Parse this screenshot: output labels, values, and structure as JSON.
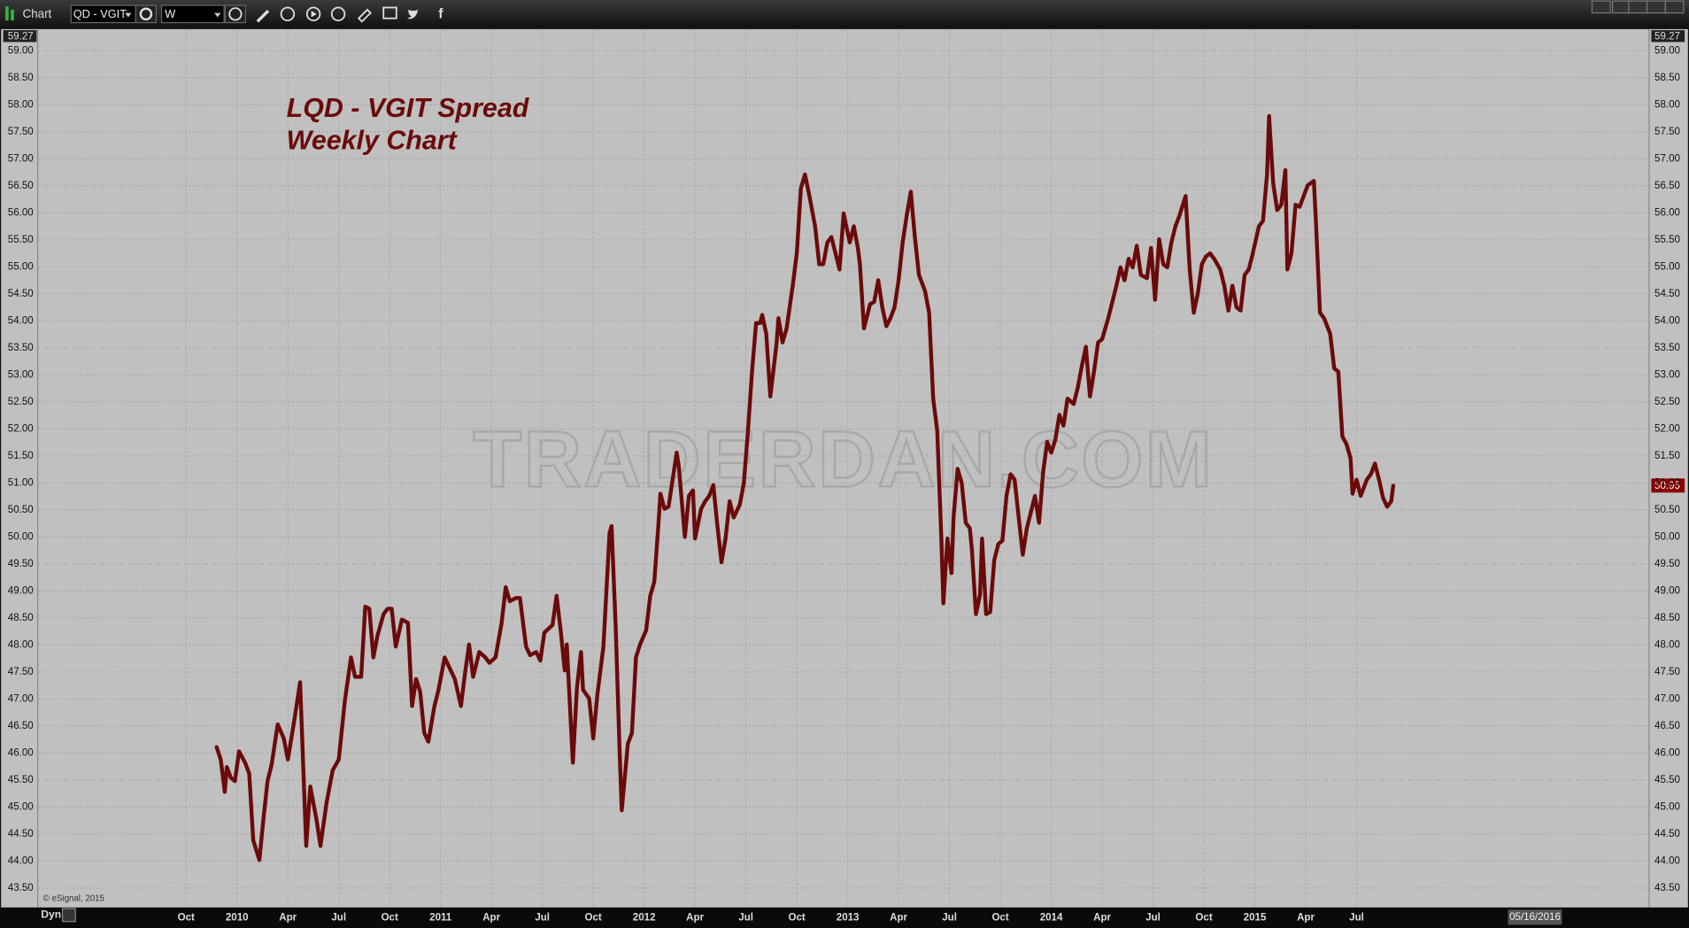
{
  "toolbar": {
    "title": "Chart",
    "symbol": "QD - VGIT",
    "interval": "W"
  },
  "footer": {
    "mode": "Dyn",
    "copyright": "© eSignal, 2015"
  },
  "chart_data": {
    "type": "line",
    "title": "LQD - VGIT Spread",
    "subtitle": "Weekly Chart",
    "watermark": "TRADERDAN.COM",
    "axis_top_label": "59.27",
    "last_value_label": "50.95",
    "cursor_date_label": "05/16/2016",
    "color": "#6b0a0a",
    "grid": true,
    "xlim": [
      2009.021,
      2016.937
    ],
    "ylim": [
      43.14,
      59.4
    ],
    "xticks": [
      {
        "value": 2009.75,
        "label": "Oct"
      },
      2010,
      {
        "value": 2010.25,
        "label": "Apr"
      },
      {
        "value": 2010.5,
        "label": "Jul"
      },
      {
        "value": 2010.75,
        "label": "Oct"
      },
      2011,
      {
        "value": 2011.25,
        "label": "Apr"
      },
      {
        "value": 2011.5,
        "label": "Jul"
      },
      {
        "value": 2011.75,
        "label": "Oct"
      },
      2012,
      {
        "value": 2012.25,
        "label": "Apr"
      },
      {
        "value": 2012.5,
        "label": "Jul"
      },
      {
        "value": 2012.75,
        "label": "Oct"
      },
      2013,
      {
        "value": 2013.25,
        "label": "Apr"
      },
      {
        "value": 2013.5,
        "label": "Jul"
      },
      {
        "value": 2013.75,
        "label": "Oct"
      },
      2014,
      {
        "value": 2014.25,
        "label": "Apr"
      },
      {
        "value": 2014.5,
        "label": "Jul"
      },
      {
        "value": 2014.75,
        "label": "Oct"
      },
      2015,
      {
        "value": 2015.25,
        "label": "Apr"
      },
      {
        "value": 2015.5,
        "label": "Jul"
      }
    ],
    "yticks": [
      {
        "value": 43.5,
        "label": "43.50"
      },
      {
        "value": 44,
        "label": "44.00"
      },
      {
        "value": 44.5,
        "label": "44.50"
      },
      {
        "value": 45,
        "label": "45.00"
      },
      {
        "value": 45.5,
        "label": "45.50"
      },
      {
        "value": 46,
        "label": "46.00"
      },
      {
        "value": 46.5,
        "label": "46.50"
      },
      {
        "value": 47,
        "label": "47.00"
      },
      {
        "value": 47.5,
        "label": "47.50"
      },
      {
        "value": 48,
        "label": "48.00"
      },
      {
        "value": 48.5,
        "label": "48.50"
      },
      {
        "value": 49,
        "label": "49.00"
      },
      {
        "value": 49.5,
        "label": "49.50"
      },
      {
        "value": 50,
        "label": "50.00"
      },
      {
        "value": 50.5,
        "label": "50.50"
      },
      {
        "value": 51,
        "label": "51.00"
      },
      {
        "value": 51.5,
        "label": "51.50"
      },
      {
        "value": 52,
        "label": "52.00"
      },
      {
        "value": 52.5,
        "label": "52.50"
      },
      {
        "value": 53,
        "label": "53.00"
      },
      {
        "value": 53.5,
        "label": "53.50"
      },
      {
        "value": 54,
        "label": "54.00"
      },
      {
        "value": 54.5,
        "label": "54.50"
      },
      {
        "value": 55,
        "label": "55.00"
      },
      {
        "value": 55.5,
        "label": "55.50"
      },
      {
        "value": 56,
        "label": "56.00"
      },
      {
        "value": 56.5,
        "label": "56.50"
      },
      {
        "value": 57,
        "label": "57.00"
      },
      {
        "value": 57.5,
        "label": "57.50"
      },
      {
        "value": 58,
        "label": "58.00"
      },
      {
        "value": 58.5,
        "label": "58.50"
      },
      {
        "value": 59,
        "label": "59.00"
      }
    ],
    "x": [
      2009.9,
      2009.92,
      2009.94,
      2009.95,
      2009.97,
      2009.99,
      2010.01,
      2010.04,
      2010.06,
      2010.08,
      2010.11,
      2010.13,
      2010.15,
      2010.17,
      2010.2,
      2010.23,
      2010.25,
      2010.28,
      2010.31,
      2010.34,
      2010.36,
      2010.39,
      2010.41,
      2010.44,
      2010.47,
      2010.5,
      2010.53,
      2010.56,
      2010.58,
      2010.61,
      2010.63,
      2010.65,
      2010.67,
      2010.69,
      2010.72,
      2010.74,
      2010.76,
      2010.78,
      2010.81,
      2010.84,
      2010.86,
      2010.88,
      2010.9,
      2010.92,
      2010.94,
      2010.97,
      2010.99,
      2011.02,
      2011.05,
      2011.07,
      2011.1,
      2011.12,
      2011.14,
      2011.16,
      2011.19,
      2011.22,
      2011.24,
      2011.27,
      2011.3,
      2011.32,
      2011.34,
      2011.37,
      2011.39,
      2011.42,
      2011.44,
      2011.47,
      2011.49,
      2011.51,
      2011.55,
      2011.57,
      2011.59,
      2011.61,
      2011.62,
      2011.65,
      2011.67,
      2011.69,
      2011.7,
      2011.73,
      2011.75,
      2011.77,
      2011.8,
      2011.83,
      2011.84,
      2011.86,
      2011.88,
      2011.89,
      2011.92,
      2011.94,
      2011.96,
      2011.98,
      2012.01,
      2012.03,
      2012.05,
      2012.07,
      2012.08,
      2012.1,
      2012.12,
      2012.14,
      2012.16,
      2012.17,
      2012.2,
      2012.22,
      2012.24,
      2012.25,
      2012.28,
      2012.3,
      2012.32,
      2012.34,
      2012.36,
      2012.38,
      2012.4,
      2012.42,
      2012.44,
      2012.47,
      2012.49,
      2012.51,
      2012.53,
      2012.55,
      2012.57,
      2012.58,
      2012.6,
      2012.62,
      2012.65,
      2012.66,
      2012.68,
      2012.7,
      2012.73,
      2012.75,
      2012.77,
      2012.79,
      2012.81,
      2012.84,
      2012.86,
      2012.88,
      2012.9,
      2012.92,
      2012.94,
      2012.96,
      2012.98,
      2013.01,
      2013.03,
      2013.05,
      2013.06,
      2013.08,
      2013.11,
      2013.13,
      2013.15,
      2013.17,
      2013.19,
      2013.21,
      2013.23,
      2013.25,
      2013.27,
      2013.29,
      2013.31,
      2013.33,
      2013.35,
      2013.38,
      2013.4,
      2013.42,
      2013.44,
      2013.46,
      2013.47,
      2013.49,
      2013.51,
      2013.52,
      2013.54,
      2013.56,
      2013.58,
      2013.6,
      2013.61,
      2013.63,
      2013.65,
      2013.66,
      2013.68,
      2013.7,
      2013.72,
      2013.74,
      2013.76,
      2013.78,
      2013.8,
      2013.82,
      2013.84,
      2013.86,
      2013.88,
      2013.9,
      2013.92,
      2013.94,
      2013.96,
      2013.98,
      2014.0,
      2014.02,
      2014.04,
      2014.06,
      2014.08,
      2014.11,
      2014.13,
      2014.15,
      2014.17,
      2014.19,
      2014.21,
      2014.23,
      2014.25,
      2014.28,
      2014.3,
      2014.32,
      2014.34,
      2014.36,
      2014.38,
      2014.4,
      2014.42,
      2014.44,
      2014.47,
      2014.49,
      2014.51,
      2014.53,
      2014.55,
      2014.57,
      2014.59,
      2014.61,
      2014.63,
      2014.66,
      2014.68,
      2014.7,
      2014.72,
      2014.74,
      2014.76,
      2014.78,
      2014.8,
      2014.83,
      2014.85,
      2014.87,
      2014.89,
      2014.91,
      2014.93,
      2014.95,
      2014.97,
      2014.99,
      2015.02,
      2015.04,
      2015.06,
      2015.07,
      2015.09,
      2015.11,
      2015.13,
      2015.15,
      2015.16,
      2015.18,
      2015.2,
      2015.22,
      2015.24,
      2015.26,
      2015.29,
      2015.3,
      2015.32,
      2015.34,
      2015.37,
      2015.39,
      2015.41,
      2015.43,
      2015.45,
      2015.47,
      2015.48,
      2015.5,
      2015.52,
      2015.55,
      2015.57,
      2015.59,
      2015.61,
      2015.63,
      2015.65,
      2015.67,
      2015.68
    ],
    "values": [
      46.11,
      45.88,
      45.28,
      45.74,
      45.54,
      45.48,
      46.03,
      45.82,
      45.62,
      44.38,
      44.02,
      44.78,
      45.48,
      45.78,
      46.53,
      46.27,
      45.88,
      46.57,
      47.31,
      44.28,
      45.38,
      44.78,
      44.28,
      45.08,
      45.68,
      45.88,
      46.97,
      47.77,
      47.41,
      47.41,
      48.71,
      48.67,
      47.77,
      48.17,
      48.57,
      48.67,
      48.67,
      47.97,
      48.47,
      48.41,
      46.87,
      47.37,
      47.13,
      46.37,
      46.21,
      46.87,
      47.17,
      47.77,
      47.53,
      47.37,
      46.87,
      47.47,
      48.01,
      47.41,
      47.87,
      47.77,
      47.67,
      47.77,
      48.41,
      49.07,
      48.81,
      48.87,
      48.87,
      47.97,
      47.81,
      47.87,
      47.71,
      48.23,
      48.37,
      48.91,
      48.27,
      47.53,
      48.01,
      45.82,
      47.21,
      47.87,
      47.17,
      47.01,
      46.27,
      47.07,
      47.97,
      50.07,
      50.2,
      48.37,
      45.98,
      44.94,
      46.17,
      46.37,
      47.77,
      48.01,
      48.27,
      48.91,
      49.17,
      50.22,
      50.8,
      50.52,
      50.56,
      51.06,
      51.56,
      51.32,
      50.0,
      50.76,
      50.86,
      49.97,
      50.52,
      50.66,
      50.76,
      50.96,
      50.2,
      49.53,
      49.97,
      50.66,
      50.36,
      50.6,
      51.0,
      51.96,
      53.06,
      53.96,
      53.96,
      54.11,
      53.76,
      52.6,
      53.56,
      54.05,
      53.6,
      53.86,
      54.65,
      55.25,
      56.45,
      56.71,
      56.35,
      55.75,
      55.05,
      55.05,
      55.45,
      55.55,
      55.25,
      54.95,
      55.99,
      55.45,
      55.75,
      55.35,
      55.05,
      53.86,
      54.31,
      54.35,
      54.75,
      54.25,
      53.9,
      54.05,
      54.25,
      54.75,
      55.45,
      55.95,
      56.39,
      55.55,
      54.85,
      54.55,
      54.15,
      52.56,
      51.96,
      49.97,
      48.77,
      49.97,
      49.33,
      50.36,
      51.26,
      51.0,
      50.26,
      50.16,
      49.77,
      48.57,
      48.93,
      49.97,
      48.57,
      48.61,
      49.57,
      49.87,
      49.93,
      50.76,
      51.16,
      51.06,
      50.36,
      49.67,
      50.16,
      50.46,
      50.76,
      50.26,
      51.2,
      51.76,
      51.56,
      51.8,
      52.26,
      52.06,
      52.56,
      52.46,
      52.76,
      53.16,
      53.52,
      52.6,
      53.06,
      53.6,
      53.66,
      54.05,
      54.35,
      54.65,
      54.99,
      54.75,
      55.15,
      54.99,
      55.39,
      54.85,
      54.79,
      55.35,
      54.39,
      55.51,
      55.05,
      54.99,
      55.45,
      55.75,
      55.95,
      56.31,
      54.95,
      54.15,
      54.51,
      55.05,
      55.19,
      55.25,
      55.15,
      54.95,
      54.65,
      54.19,
      54.65,
      54.25,
      54.19,
      54.85,
      54.95,
      55.25,
      55.75,
      55.85,
      56.71,
      57.79,
      56.55,
      56.05,
      56.15,
      56.79,
      54.95,
      55.25,
      56.15,
      56.11,
      56.31,
      56.51,
      56.59,
      55.85,
      54.15,
      54.05,
      53.76,
      53.12,
      53.06,
      51.86,
      51.72,
      51.46,
      50.8,
      51.06,
      50.76,
      51.06,
      51.16,
      51.36,
      51.06,
      50.72,
      50.56,
      50.66,
      50.95
    ]
  }
}
